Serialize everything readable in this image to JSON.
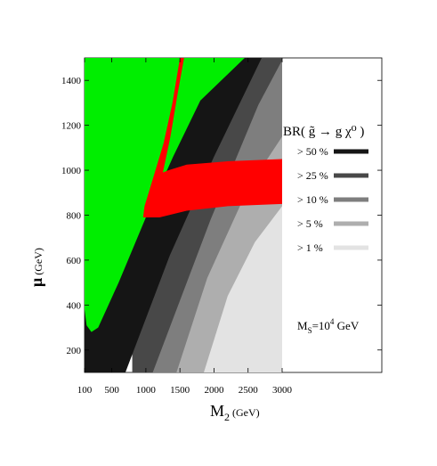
{
  "chart_data": {
    "type": "area",
    "xlabel": {
      "main": "M",
      "sub": "2",
      "unit": "(GeV)"
    },
    "ylabel": {
      "main": "μ",
      "unit": "(GeV)"
    },
    "xlim": [
      100,
      3000
    ],
    "ylim": [
      100,
      1500
    ],
    "xticks": [
      100,
      500,
      1000,
      1500,
      2000,
      2500,
      3000
    ],
    "yticks": [
      200,
      400,
      600,
      800,
      1000,
      1200,
      1400
    ],
    "legend": {
      "title": "BR( g̃ → g χ⁰ )",
      "placement": "right",
      "entries": [
        {
          "label": "> 50 %",
          "color": "#151515"
        },
        {
          "label": "> 25 %",
          "color": "#484848"
        },
        {
          "label": "> 10 %",
          "color": "#7e7e7e"
        },
        {
          "label": ">  5 %",
          "color": "#aeaeae"
        },
        {
          "label": ">  1 %",
          "color": "#e3e3e3"
        }
      ]
    },
    "annotation": {
      "main": "M",
      "sub": "S",
      "eq": "=10",
      "sup": "4",
      "unit": " GeV"
    },
    "region_colors": {
      "excluded": "#00ee00",
      "band": "#ff0000",
      "br_50": "#151515",
      "br_25": "#484848",
      "br_10": "#7e7e7e",
      "br_5": "#aeaeae",
      "br_1": "#e3e3e3"
    },
    "regions": [
      {
        "name": "br_1",
        "polygon": [
          [
            1500,
            100
          ],
          [
            3000,
            100
          ],
          [
            3000,
            1500
          ],
          [
            1500,
            1500
          ]
        ]
      },
      {
        "name": "br_5",
        "polygon": [
          [
            1200,
            100
          ],
          [
            1850,
            100
          ],
          [
            2200,
            440
          ],
          [
            2600,
            680
          ],
          [
            3000,
            840
          ],
          [
            3000,
            1500
          ],
          [
            1200,
            1500
          ]
        ]
      },
      {
        "name": "br_10",
        "polygon": [
          [
            1000,
            100
          ],
          [
            1450,
            100
          ],
          [
            1900,
            520
          ],
          [
            2500,
            920
          ],
          [
            3000,
            1150
          ],
          [
            3000,
            1500
          ],
          [
            1000,
            1500
          ]
        ]
      },
      {
        "name": "br_25",
        "polygon": [
          [
            800,
            100
          ],
          [
            1100,
            100
          ],
          [
            1950,
            780
          ],
          [
            2650,
            1290
          ],
          [
            3000,
            1490
          ],
          [
            3000,
            1500
          ],
          [
            800,
            1500
          ]
        ]
      },
      {
        "name": "br_50",
        "polygon": [
          [
            100,
            100
          ],
          [
            700,
            100
          ],
          [
            1350,
            620
          ],
          [
            2000,
            1060
          ],
          [
            2700,
            1500
          ],
          [
            100,
            1500
          ]
        ]
      },
      {
        "name": "excluded",
        "polygon": [
          [
            100,
            380
          ],
          [
            130,
            310
          ],
          [
            200,
            280
          ],
          [
            300,
            300
          ],
          [
            600,
            500
          ],
          [
            1000,
            790
          ],
          [
            1400,
            1060
          ],
          [
            1800,
            1310
          ],
          [
            2450,
            1500
          ],
          [
            100,
            1500
          ]
        ]
      },
      {
        "name": "band",
        "polygon": [
          [
            1500,
            1500
          ],
          [
            1390,
            1300
          ],
          [
            1260,
            1120
          ],
          [
            1100,
            960
          ],
          [
            980,
            840
          ],
          [
            960,
            790
          ],
          [
            1200,
            790
          ],
          [
            1600,
            820
          ],
          [
            2200,
            840
          ],
          [
            3000,
            850
          ],
          [
            3000,
            1050
          ],
          [
            2200,
            1040
          ],
          [
            1600,
            1025
          ],
          [
            1330,
            1000
          ],
          [
            1250,
            990
          ],
          [
            1360,
            1150
          ],
          [
            1460,
            1330
          ],
          [
            1560,
            1500
          ]
        ]
      }
    ]
  }
}
